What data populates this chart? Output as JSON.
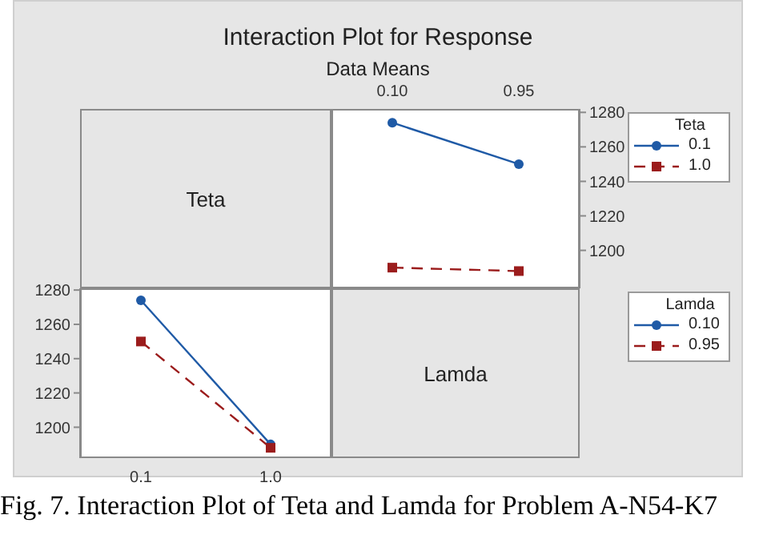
{
  "chart_data": [
    {
      "type": "line",
      "title": "Interaction Plot for Response",
      "subtitle": "Data Means",
      "xlabel": "Lamda",
      "legend_title": "Teta",
      "categories": [
        "0.10",
        "0.95"
      ],
      "series": [
        {
          "name": "0.1",
          "color": "#1f5aa6",
          "values": [
            1274,
            1250
          ],
          "marker": "circle",
          "line_style": "solid"
        },
        {
          "name": "1.0",
          "color": "#9b1c1c",
          "values": [
            1190,
            1188
          ],
          "marker": "square",
          "line_style": "dashed"
        }
      ],
      "ylim": [
        1178,
        1282
      ],
      "yticks": [
        1200,
        1220,
        1240,
        1260,
        1280
      ],
      "legend": "right",
      "annotations": [
        "Fig. 7. Interaction Plot of Teta and Lamda for Problem A-N54-K7"
      ]
    },
    {
      "type": "line",
      "xlabel": "Teta",
      "legend_title": "Lamda",
      "categories": [
        "0.1",
        "1.0"
      ],
      "series": [
        {
          "name": "0.10",
          "color": "#1f5aa6",
          "values": [
            1274,
            1190
          ],
          "marker": "circle",
          "line_style": "solid"
        },
        {
          "name": "0.95",
          "color": "#9b1c1c",
          "values": [
            1250,
            1188
          ],
          "marker": "square",
          "line_style": "dashed"
        }
      ],
      "ylim": [
        1182,
        1281
      ],
      "yticks": [
        1200,
        1220,
        1240,
        1260,
        1280
      ],
      "legend": "right"
    }
  ]
}
